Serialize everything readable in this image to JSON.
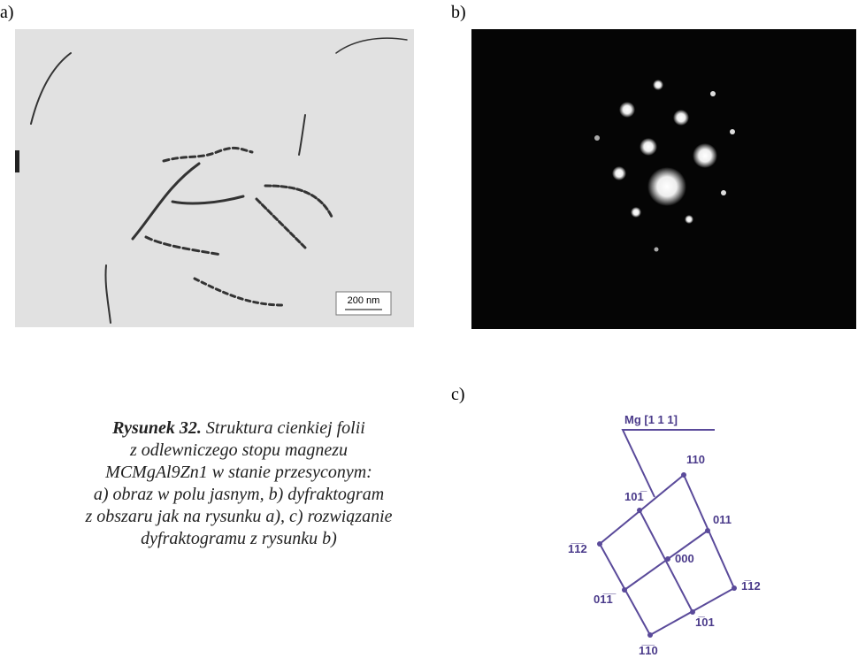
{
  "panels": {
    "a": {
      "label": "a)",
      "scale_bar": "200 nm"
    },
    "b": {
      "label": "b)"
    },
    "c": {
      "label": "c)",
      "zone_axis": "Mg [1 1 1]",
      "nodes": [
        "110",
        "101̅",
        "011",
        "1̅1̅2",
        "000",
        "1̅12",
        "01̅1̅",
        "1̅01",
        "1̅1̅0"
      ]
    }
  },
  "caption": {
    "label": "Rysunek 32.",
    "lines": [
      " Struktura cienkiej folii",
      "z odlewniczego stopu magnezu",
      "MCMgAl9Zn1 w stanie przesyconym:",
      "a) obraz w polu jasnym, b) dyfraktogram",
      "z obszaru jak na rysunku a), c) rozwiązanie",
      "dyfraktogramu z rysunku b)"
    ]
  }
}
